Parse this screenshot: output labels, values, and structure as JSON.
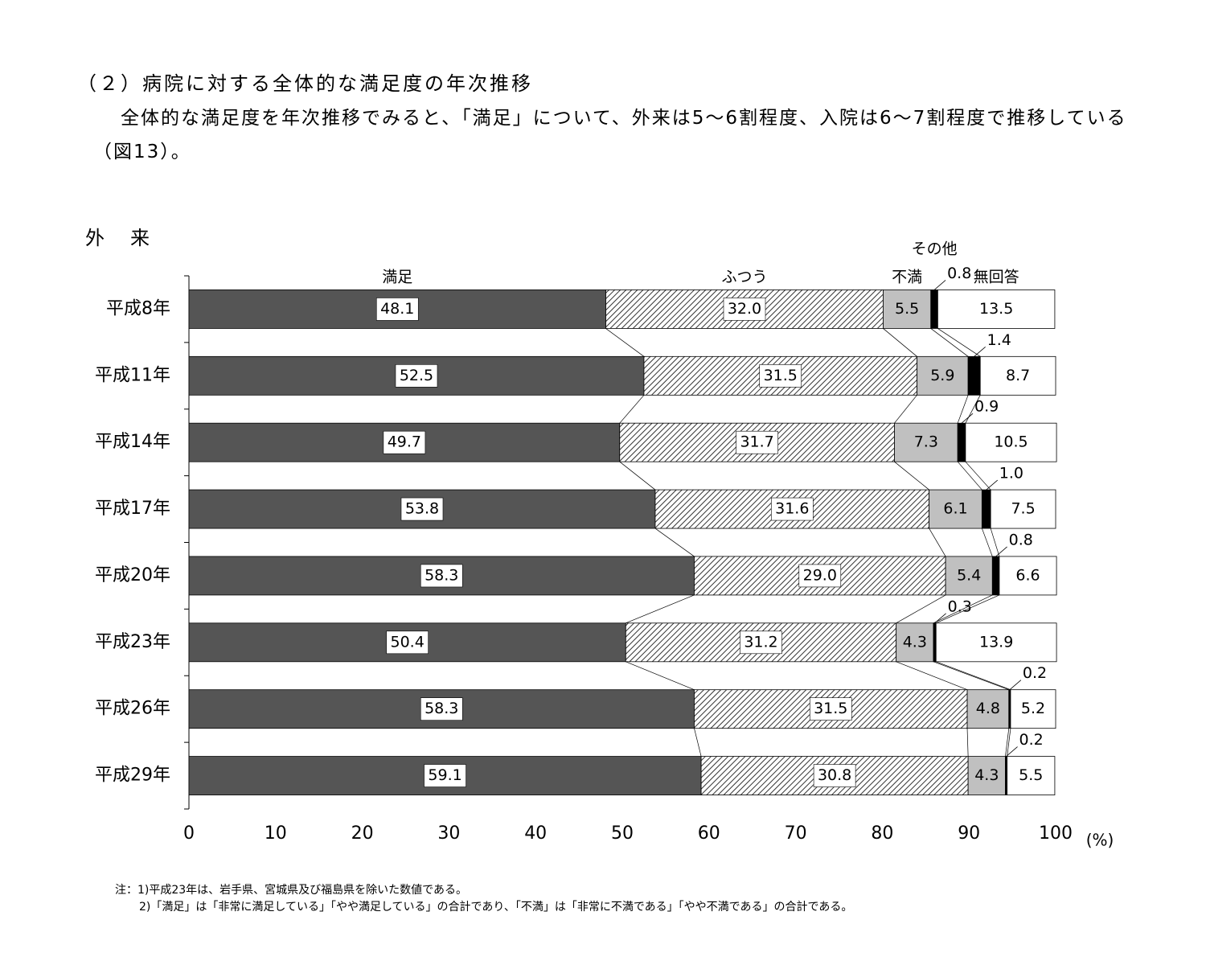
{
  "heading": "（２）病院に対する全体的な満足度の年次推移",
  "paragraph": "全体的な満足度を年次推移でみると、「満足」について、外来は5～6割程度、入院は6～7割程度で推移している（図13）。",
  "section": "外　来",
  "notes": [
    "注：1)平成23年は、岩手県、宮城県及び福島県を除いた数値である。",
    "2)「満足」は「非常に満足している」「やや満足している」の合計であり、「不満」は「非常に不満である」「やや不満である」の合計である。"
  ],
  "chart_data": {
    "type": "stacked-bar-horizontal",
    "categories": [
      "平成8年",
      "平成11年",
      "平成14年",
      "平成17年",
      "平成20年",
      "平成23年",
      "平成26年",
      "平成29年"
    ],
    "series": [
      {
        "name": "満足",
        "color": "#555555",
        "values": [
          48.1,
          52.5,
          49.7,
          53.8,
          58.3,
          50.4,
          58.3,
          59.1
        ],
        "value_labels": [
          "48.1",
          "52.5",
          "49.7",
          "53.8",
          "58.3",
          "50.4",
          "58.3",
          "59.1"
        ]
      },
      {
        "name": "ふつう",
        "color": "#ffffff",
        "hatch": true,
        "values": [
          32.0,
          31.5,
          31.7,
          31.6,
          29.0,
          31.2,
          31.5,
          30.8
        ],
        "value_labels": [
          "32.0",
          "31.5",
          "31.7",
          "31.6",
          "29.0",
          "31.2",
          "31.5",
          "30.8"
        ]
      },
      {
        "name": "不満",
        "color": "#c0c0c0",
        "values": [
          5.5,
          5.9,
          7.3,
          6.1,
          5.4,
          4.3,
          4.8,
          4.3
        ],
        "value_labels": [
          "5.5",
          "5.9",
          "7.3",
          "6.1",
          "5.4",
          "4.3",
          "4.8",
          "4.3"
        ]
      },
      {
        "name": "その他",
        "color": "#000000",
        "values": [
          0.8,
          1.4,
          0.9,
          1.0,
          0.8,
          0.3,
          0.2,
          0.2
        ],
        "value_labels": [
          "0.8",
          "1.4",
          "0.9",
          "1.0",
          "0.8",
          "0.3",
          "0.2",
          "0.2"
        ]
      },
      {
        "name": "無回答",
        "color": "#ffffff",
        "values": [
          13.5,
          8.7,
          10.5,
          7.5,
          6.6,
          13.9,
          5.2,
          5.5
        ],
        "value_labels": [
          "13.5",
          "8.7",
          "10.5",
          "7.5",
          "6.6",
          "13.9",
          "5.2",
          "5.5"
        ]
      }
    ],
    "xlim": [
      0,
      100
    ],
    "xticks": [
      0,
      10,
      20,
      30,
      40,
      50,
      60,
      70,
      80,
      90,
      100
    ],
    "x_unit": "(%)"
  }
}
